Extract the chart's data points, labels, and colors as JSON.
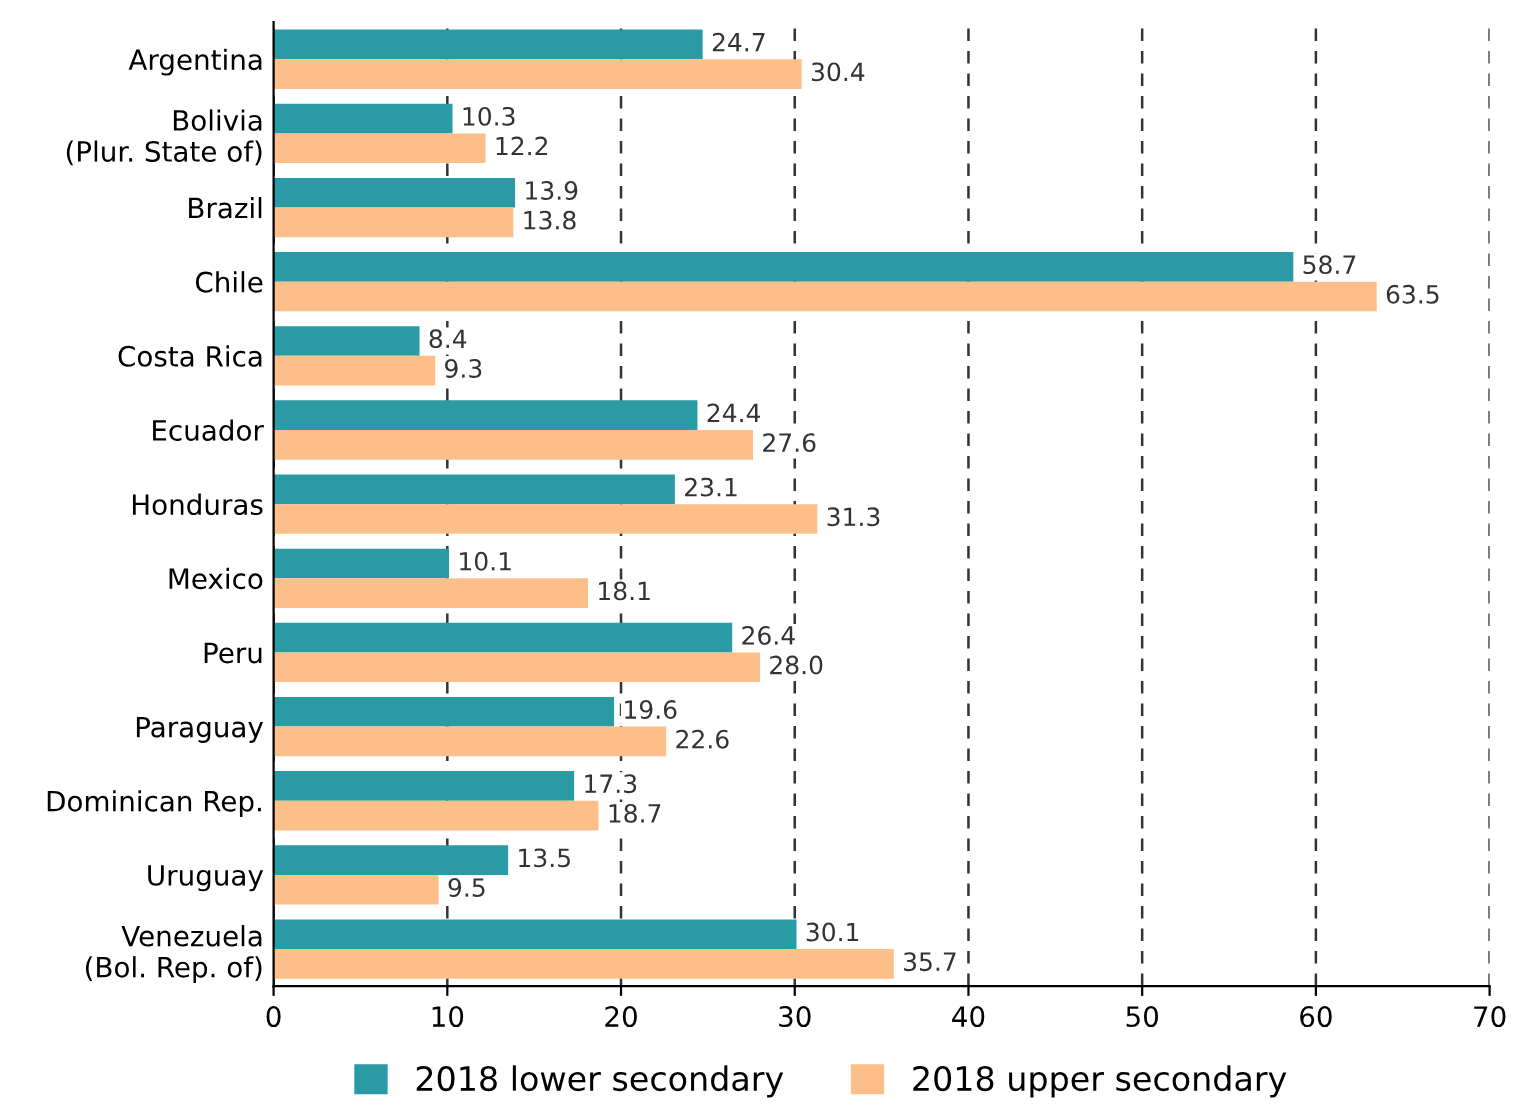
{
  "chart_data": {
    "type": "bar",
    "orientation": "horizontal",
    "categories": [
      "Argentina",
      "Bolivia\n(Plur. State of)",
      "Brazil",
      "Chile",
      "Costa Rica",
      "Ecuador",
      "Honduras",
      "Mexico",
      "Peru",
      "Paraguay",
      "Dominican Rep.",
      "Uruguay",
      "Venezuela\n(Bol. Rep. of)"
    ],
    "series": [
      {
        "name": "2018 lower secondary",
        "color": "#2a9aa5",
        "values": [
          24.7,
          10.3,
          13.9,
          58.7,
          8.4,
          24.4,
          23.1,
          10.1,
          26.4,
          19.6,
          17.3,
          13.5,
          30.1
        ],
        "value_labels": [
          "24.7",
          "10.3",
          "13.9",
          "58.7",
          "8.4",
          "24.4",
          "23.1",
          "10.1",
          "26.4",
          "19.6",
          "17.3",
          "13.5",
          "30.1"
        ]
      },
      {
        "name": "2018 upper secondary",
        "color": "#fdbf8a",
        "values": [
          30.4,
          12.2,
          13.8,
          63.5,
          9.3,
          27.6,
          31.3,
          18.1,
          28.0,
          22.6,
          18.7,
          9.5,
          35.7
        ],
        "value_labels": [
          "30.4",
          "12.2",
          "13.8",
          "63.5",
          "9.3",
          "27.6",
          "31.3",
          "18.1",
          "28.0",
          "22.6",
          "18.7",
          "9.5",
          "35.7"
        ]
      }
    ],
    "xlim": [
      0,
      70
    ],
    "xticks": [
      0,
      10,
      20,
      30,
      40,
      50,
      60,
      70
    ],
    "grid": "x",
    "legend": "bottom"
  }
}
